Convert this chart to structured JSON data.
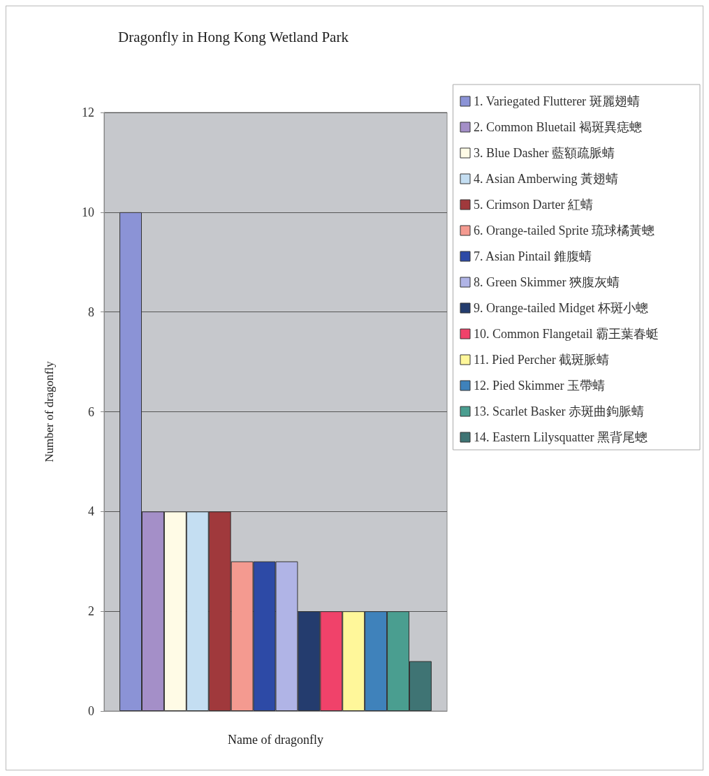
{
  "chart_data": {
    "type": "bar",
    "title": "Dragonfly in Hong Kong Wetland Park",
    "xlabel": "Name of dragonfly",
    "ylabel": "Number of dragonfly",
    "categories": [
      null
    ],
    "series": [
      {
        "name": "1. Variegated Flutterer 斑麗翅蜻",
        "color": "#8b93d6",
        "values": [
          10
        ]
      },
      {
        "name": "2. Common Bluetail 褐斑異痣蟌",
        "color": "#a48fc8",
        "values": [
          4
        ]
      },
      {
        "name": "3. Blue Dasher 藍額疏脈蜻",
        "color": "#fffbe6",
        "values": [
          4
        ]
      },
      {
        "name": "4. Asian Amberwing 黃翅蜻",
        "color": "#c4def2",
        "values": [
          4
        ]
      },
      {
        "name": "5. Crimson Darter 紅蜻",
        "color": "#a0393c",
        "values": [
          4
        ]
      },
      {
        "name": "6. Orange-tailed Sprite 琉球橘黃蟌",
        "color": "#f49a90",
        "values": [
          3
        ]
      },
      {
        "name": "7. Asian Pintail 錐腹蜻",
        "color": "#2d4aa6",
        "values": [
          3
        ]
      },
      {
        "name": "8. Green Skimmer 狹腹灰蜻",
        "color": "#b0b4e6",
        "values": [
          3
        ]
      },
      {
        "name": "9. Orange-tailed Midget 杯斑小蟌",
        "color": "#243c6e",
        "values": [
          2
        ]
      },
      {
        "name": "10. Common Flangetail 霸王葉春蜓",
        "color": "#f0426a",
        "values": [
          2
        ]
      },
      {
        "name": "11. Pied Percher 截斑脈蜻",
        "color": "#fff79a",
        "values": [
          2
        ]
      },
      {
        "name": "12. Pied Skimmer 玉帶蜻",
        "color": "#3f82bb",
        "values": [
          2
        ]
      },
      {
        "name": "13. Scarlet Basker 赤斑曲鉤脈蜻",
        "color": "#4a9e90",
        "values": [
          2
        ]
      },
      {
        "name": "14. Eastern Lilysquatter 黑背尾蟌",
        "color": "#3f7474",
        "values": [
          1
        ]
      }
    ],
    "ylim": [
      0,
      12
    ],
    "yticks": [
      0,
      2,
      4,
      6,
      8,
      10,
      12
    ],
    "grid": "y",
    "legend": "right",
    "tick_labels": "y"
  }
}
